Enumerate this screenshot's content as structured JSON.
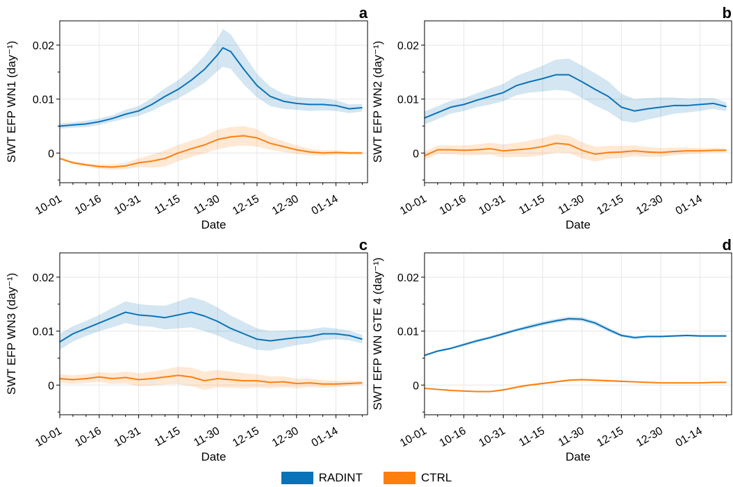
{
  "chart_data": [
    {
      "type": "line",
      "panel": "a",
      "ylabel": "SWT EFP WN1 (day⁻¹)",
      "xlabel": "Date",
      "x_tick_labels": [
        "10-01",
        "10-16",
        "10-31",
        "11-15",
        "11-30",
        "12-15",
        "12-30",
        "01-14"
      ],
      "y_tick_labels": [
        "0",
        "0.01",
        "0.02"
      ],
      "ylim": [
        -0.0055,
        0.0245
      ],
      "grid": true,
      "series": [
        {
          "name": "RADINT",
          "color": "#0a72b8",
          "x": [
            0,
            5,
            10,
            15,
            20,
            25,
            30,
            35,
            40,
            45,
            50,
            55,
            60,
            62,
            65,
            70,
            75,
            80,
            85,
            90,
            95,
            100,
            105,
            110,
            115
          ],
          "y": [
            0.005,
            0.0052,
            0.0054,
            0.0058,
            0.0064,
            0.0072,
            0.0078,
            0.009,
            0.0105,
            0.0118,
            0.0135,
            0.0155,
            0.0182,
            0.0195,
            0.0188,
            0.0155,
            0.0125,
            0.0105,
            0.0096,
            0.0092,
            0.009,
            0.009,
            0.0088,
            0.0082,
            0.0084
          ],
          "band": [
            0.0005,
            0.0005,
            0.0006,
            0.0006,
            0.0006,
            0.0008,
            0.0009,
            0.0012,
            0.0015,
            0.0017,
            0.002,
            0.0025,
            0.003,
            0.0035,
            0.0032,
            0.0028,
            0.0022,
            0.0018,
            0.0014,
            0.0012,
            0.0012,
            0.0011,
            0.001,
            0.0008,
            0.0007
          ]
        },
        {
          "name": "CTRL",
          "color": "#ff7f0e",
          "x": [
            0,
            5,
            10,
            15,
            20,
            25,
            30,
            35,
            40,
            45,
            50,
            55,
            60,
            65,
            70,
            75,
            80,
            85,
            90,
            95,
            100,
            105,
            110,
            115
          ],
          "y": [
            -0.001,
            -0.0018,
            -0.0022,
            -0.0025,
            -0.0026,
            -0.0024,
            -0.0018,
            -0.0015,
            -0.001,
            0.0,
            0.0008,
            0.0015,
            0.0025,
            0.003,
            0.0032,
            0.0028,
            0.0018,
            0.0012,
            0.0006,
            0.0002,
            0.0,
            0.0001,
            0.0,
            0.0
          ],
          "band": [
            0.0002,
            0.0003,
            0.0003,
            0.0004,
            0.0005,
            0.0006,
            0.0008,
            0.0012,
            0.0015,
            0.0015,
            0.0015,
            0.0016,
            0.0018,
            0.0018,
            0.0018,
            0.0016,
            0.0012,
            0.001,
            0.0008,
            0.0006,
            0.0005,
            0.0004,
            0.0003,
            0.0003
          ]
        }
      ]
    },
    {
      "type": "line",
      "panel": "b",
      "ylabel": "SWT EFP WN2 (day⁻¹)",
      "xlabel": "Date",
      "x_tick_labels": [
        "10-01",
        "10-16",
        "10-31",
        "11-15",
        "11-30",
        "12-15",
        "12-30",
        "01-14"
      ],
      "y_tick_labels": [
        "0",
        "0.01",
        "0.02"
      ],
      "ylim": [
        -0.0055,
        0.0245
      ],
      "grid": true,
      "series": [
        {
          "name": "RADINT",
          "color": "#0a72b8",
          "x": [
            0,
            5,
            10,
            15,
            20,
            25,
            30,
            35,
            40,
            45,
            50,
            55,
            60,
            65,
            70,
            75,
            80,
            85,
            90,
            95,
            100,
            105,
            110,
            115
          ],
          "y": [
            0.0065,
            0.0075,
            0.0085,
            0.009,
            0.0098,
            0.0105,
            0.0112,
            0.0125,
            0.0132,
            0.0138,
            0.0145,
            0.0145,
            0.0132,
            0.0118,
            0.0105,
            0.0085,
            0.0078,
            0.0082,
            0.0085,
            0.0088,
            0.0088,
            0.009,
            0.0092,
            0.0086
          ],
          "band": [
            0.0012,
            0.0012,
            0.0012,
            0.0012,
            0.0013,
            0.0015,
            0.0016,
            0.0018,
            0.002,
            0.0024,
            0.0028,
            0.003,
            0.003,
            0.003,
            0.0028,
            0.0025,
            0.0022,
            0.002,
            0.0018,
            0.0015,
            0.0013,
            0.0012,
            0.001,
            0.0008
          ]
        },
        {
          "name": "CTRL",
          "color": "#ff7f0e",
          "x": [
            0,
            5,
            10,
            15,
            20,
            25,
            30,
            35,
            40,
            45,
            50,
            55,
            60,
            65,
            70,
            75,
            80,
            85,
            90,
            95,
            100,
            105,
            110,
            115
          ],
          "y": [
            -0.0005,
            0.0006,
            0.0006,
            0.0005,
            0.0006,
            0.0008,
            0.0004,
            0.0006,
            0.0008,
            0.0012,
            0.0018,
            0.0016,
            0.0005,
            -0.0002,
            0.0001,
            0.0002,
            0.0004,
            0.0002,
            0.0001,
            0.0003,
            0.0004,
            0.0004,
            0.0005,
            0.0005
          ],
          "band": [
            0.0008,
            0.0008,
            0.0008,
            0.0009,
            0.001,
            0.0011,
            0.0012,
            0.0013,
            0.0015,
            0.0016,
            0.0017,
            0.0016,
            0.0015,
            0.0014,
            0.0012,
            0.0011,
            0.001,
            0.0009,
            0.0008,
            0.0007,
            0.0006,
            0.0005,
            0.0004,
            0.0004
          ]
        }
      ]
    },
    {
      "type": "line",
      "panel": "c",
      "ylabel": "SWT EFP WN3 (day⁻¹)",
      "xlabel": "Date",
      "x_tick_labels": [
        "10-01",
        "10-16",
        "10-31",
        "11-15",
        "11-30",
        "12-15",
        "12-30",
        "01-14"
      ],
      "y_tick_labels": [
        "0",
        "0.01",
        "0.02"
      ],
      "ylim": [
        -0.0055,
        0.0245
      ],
      "grid": true,
      "series": [
        {
          "name": "RADINT",
          "color": "#0a72b8",
          "x": [
            0,
            5,
            10,
            15,
            20,
            25,
            30,
            35,
            40,
            45,
            50,
            55,
            60,
            65,
            70,
            75,
            80,
            85,
            90,
            95,
            100,
            105,
            110,
            115
          ],
          "y": [
            0.008,
            0.0095,
            0.0105,
            0.0115,
            0.0125,
            0.0135,
            0.013,
            0.0128,
            0.0125,
            0.013,
            0.0135,
            0.0128,
            0.0118,
            0.0105,
            0.0095,
            0.0085,
            0.0082,
            0.0085,
            0.0088,
            0.009,
            0.0095,
            0.0095,
            0.0092,
            0.0085
          ],
          "band": [
            0.0015,
            0.0014,
            0.0014,
            0.0015,
            0.0018,
            0.002,
            0.002,
            0.002,
            0.0022,
            0.0025,
            0.0028,
            0.0028,
            0.0026,
            0.0024,
            0.0022,
            0.002,
            0.0018,
            0.0016,
            0.0014,
            0.0013,
            0.0012,
            0.001,
            0.0009,
            0.0008
          ]
        },
        {
          "name": "CTRL",
          "color": "#ff7f0e",
          "x": [
            0,
            5,
            10,
            15,
            20,
            25,
            30,
            35,
            40,
            45,
            50,
            55,
            60,
            65,
            70,
            75,
            80,
            85,
            90,
            95,
            100,
            105,
            110,
            115
          ],
          "y": [
            0.0012,
            0.001,
            0.0012,
            0.0015,
            0.0012,
            0.0014,
            0.001,
            0.0012,
            0.0015,
            0.0018,
            0.0015,
            0.0008,
            0.0012,
            0.001,
            0.0008,
            0.0008,
            0.0005,
            0.0006,
            0.0003,
            0.0004,
            0.0002,
            0.0002,
            0.0003,
            0.0004
          ],
          "band": [
            0.0008,
            0.0008,
            0.0008,
            0.0009,
            0.001,
            0.0011,
            0.0012,
            0.0013,
            0.0014,
            0.0016,
            0.0017,
            0.0017,
            0.0016,
            0.0015,
            0.0014,
            0.0012,
            0.0011,
            0.001,
            0.0009,
            0.0008,
            0.0007,
            0.0006,
            0.0005,
            0.0004
          ]
        }
      ]
    },
    {
      "type": "line",
      "panel": "d",
      "ylabel": "SWT EFP WN GTE 4 (day⁻¹)",
      "xlabel": "Date",
      "x_tick_labels": [
        "10-01",
        "10-16",
        "10-31",
        "11-15",
        "11-30",
        "12-15",
        "12-30",
        "01-14"
      ],
      "y_tick_labels": [
        "0",
        "0.01",
        "0.02"
      ],
      "ylim": [
        -0.0055,
        0.0245
      ],
      "grid": true,
      "series": [
        {
          "name": "RADINT",
          "color": "#0a72b8",
          "x": [
            0,
            5,
            10,
            15,
            20,
            25,
            30,
            35,
            40,
            45,
            50,
            55,
            60,
            65,
            70,
            75,
            80,
            85,
            90,
            95,
            100,
            105,
            110,
            115
          ],
          "y": [
            0.0055,
            0.0063,
            0.0068,
            0.0075,
            0.0082,
            0.0088,
            0.0095,
            0.0102,
            0.0108,
            0.0114,
            0.0119,
            0.0123,
            0.0122,
            0.0115,
            0.0103,
            0.0092,
            0.0088,
            0.009,
            0.009,
            0.0091,
            0.0092,
            0.0091,
            0.0091,
            0.0091
          ],
          "band": [
            0.0002,
            0.0002,
            0.0002,
            0.0003,
            0.0003,
            0.0003,
            0.0003,
            0.0003,
            0.0004,
            0.0004,
            0.0004,
            0.0004,
            0.0004,
            0.0004,
            0.0004,
            0.0003,
            0.0003,
            0.0002,
            0.0002,
            0.0002,
            0.0002,
            0.0002,
            0.0002,
            0.0002
          ]
        },
        {
          "name": "CTRL",
          "color": "#ff7f0e",
          "x": [
            0,
            5,
            10,
            15,
            20,
            25,
            30,
            35,
            40,
            45,
            50,
            55,
            60,
            65,
            70,
            75,
            80,
            85,
            90,
            95,
            100,
            105,
            110,
            115
          ],
          "y": [
            -0.0006,
            -0.0008,
            -0.001,
            -0.0011,
            -0.0012,
            -0.0012,
            -0.0009,
            -0.0004,
            0.0,
            0.0003,
            0.0006,
            0.0009,
            0.001,
            0.0009,
            0.0008,
            0.0007,
            0.0006,
            0.0005,
            0.0004,
            0.0004,
            0.0004,
            0.0004,
            0.0005,
            0.0005
          ],
          "band": [
            0.0001,
            0.0001,
            0.0001,
            0.0001,
            0.0001,
            0.0001,
            0.0002,
            0.0002,
            0.0002,
            0.0002,
            0.0002,
            0.0002,
            0.0002,
            0.0002,
            0.0002,
            0.0002,
            0.0001,
            0.0001,
            0.0001,
            0.0001,
            0.0001,
            0.0001,
            0.0001,
            0.0001
          ]
        }
      ]
    }
  ],
  "legend": [
    {
      "label": "RADINT",
      "color": "#0a72b8"
    },
    {
      "label": "CTRL",
      "color": "#ff7f0e"
    }
  ]
}
